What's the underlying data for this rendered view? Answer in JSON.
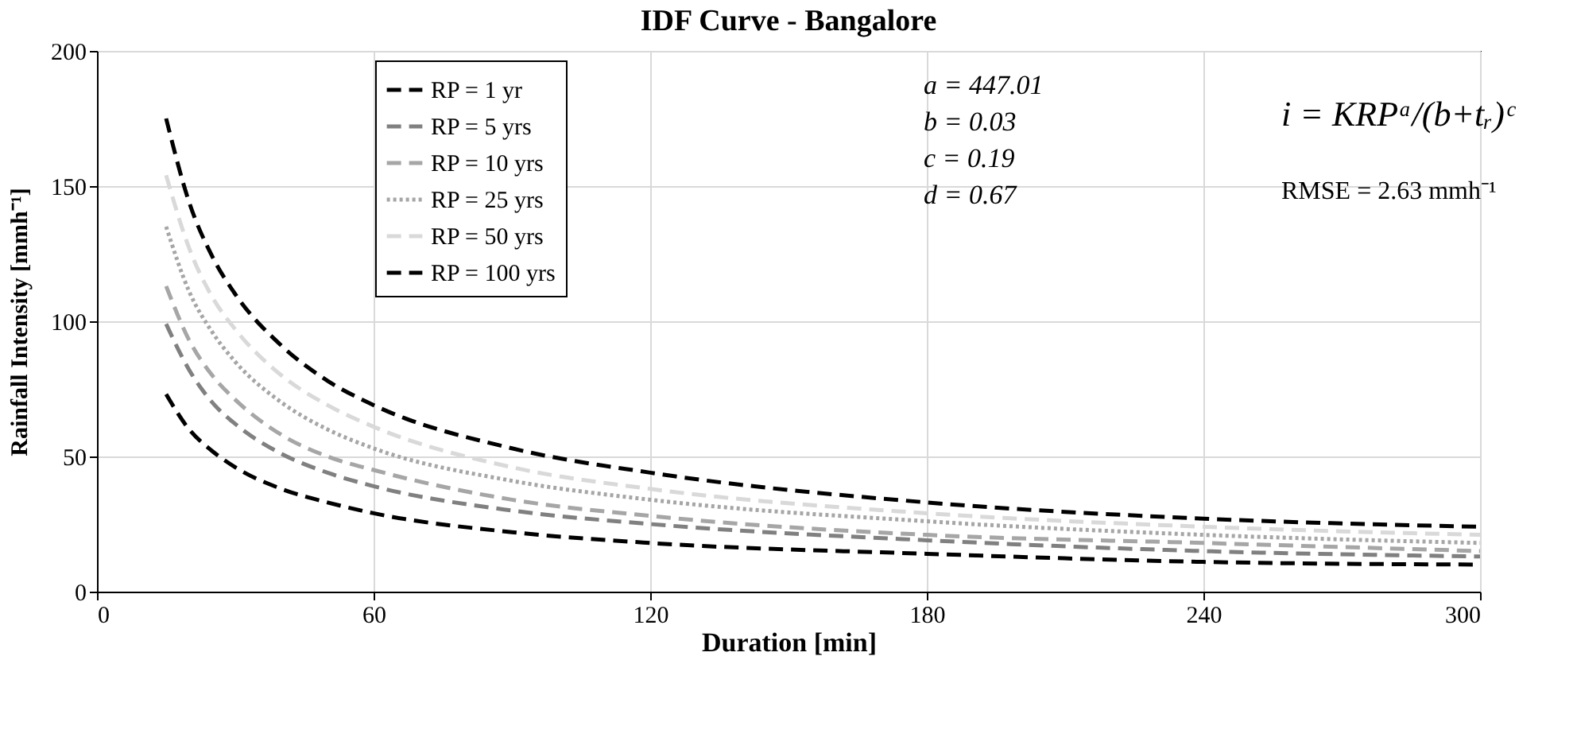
{
  "chart_data": {
    "type": "line",
    "title": "IDF Curve - Bangalore",
    "xlabel": "Duration [min]",
    "ylabel": "Rainfall Intensity [mmh⁻¹]",
    "x": [
      15,
      20,
      25,
      30,
      40,
      50,
      60,
      90,
      120,
      180,
      240,
      300
    ],
    "series": [
      {
        "name": "RP = 1 yr",
        "color": "#000000",
        "line_style": "dashed",
        "values": [
          73,
          60,
          52,
          46,
          38,
          33,
          29,
          22,
          18,
          14,
          11,
          10
        ]
      },
      {
        "name": "RP = 5 yrs",
        "color": "#808080",
        "line_style": "dashed",
        "values": [
          99,
          82,
          70,
          62,
          51,
          44,
          39,
          30,
          25,
          19,
          15,
          13
        ]
      },
      {
        "name": "RP = 10 yrs",
        "color": "#a6a6a6",
        "line_style": "dashed",
        "values": [
          113,
          93,
          80,
          71,
          58,
          50,
          45,
          34,
          28,
          21,
          18,
          15
        ]
      },
      {
        "name": "RP = 25 yrs",
        "color": "#a6a6a6",
        "line_style": "dotted",
        "values": [
          135,
          111,
          96,
          85,
          70,
          60,
          53,
          41,
          34,
          26,
          21,
          18
        ]
      },
      {
        "name": "RP = 50 yrs",
        "color": "#d9d9d9",
        "line_style": "dashed",
        "values": [
          154,
          127,
          109,
          97,
          80,
          69,
          61,
          46,
          38,
          29,
          24,
          21
        ]
      },
      {
        "name": "RP = 100 yrs",
        "color": "#000000",
        "line_style": "dashed",
        "values": [
          175,
          144,
          124,
          110,
          91,
          78,
          69,
          53,
          44,
          33,
          27,
          24
        ]
      }
    ],
    "xlim": [
      0,
      300
    ],
    "xticks": [
      0,
      60,
      120,
      180,
      240,
      300
    ],
    "ylim": [
      0,
      200
    ],
    "yticks": [
      0,
      50,
      100,
      150,
      200
    ],
    "grid": true,
    "legend": "top left",
    "marker": "none",
    "annotations": [
      "a = 447.01",
      "b = 0.03",
      "c = 0.19",
      "d = 0.67",
      "i = KRPᵃ/(b+tᵣ)ᶜ",
      "RMSE = 2.63 mmh⁻¹"
    ]
  }
}
